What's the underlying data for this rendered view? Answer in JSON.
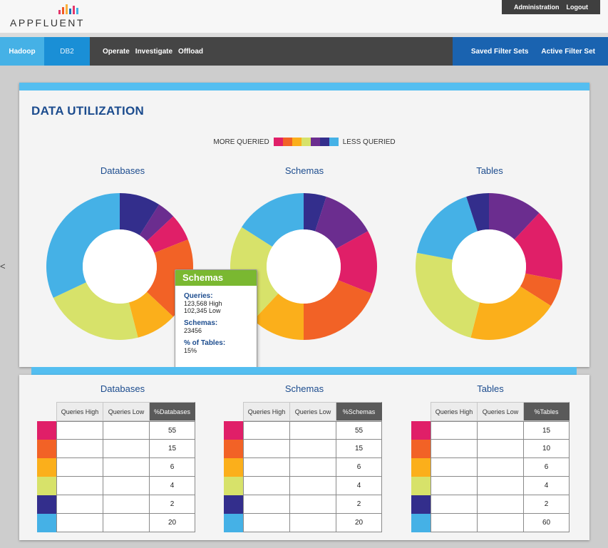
{
  "header": {
    "logo_text": "APPFLUENT",
    "logo_bar_colors": [
      "#e3366b",
      "#f15a24",
      "#fbb03b",
      "#1b75bc",
      "#e3366b",
      "#45b1e6"
    ],
    "admin_label": "Administration",
    "logout_label": "Logout"
  },
  "nav": {
    "hadoop": "Hadoop",
    "db2": "DB2",
    "operate": "Operate",
    "investigate": "Investigate",
    "offload": "Offload",
    "saved_filter_sets": "Saved Filter Sets",
    "active_filter_set": "Active Filter Set"
  },
  "side_caret": "<",
  "utilization": {
    "title": "DATA UTILIZATION",
    "legend_more": "MORE QUERIED",
    "legend_less": "LESS QUERIED",
    "legend_colors": [
      "#e01f68",
      "#f26226",
      "#fbaf1b",
      "#d7e26a",
      "#6b2d8f",
      "#332e8c",
      "#45b1e6"
    ]
  },
  "colors": {
    "magenta": "#e01f68",
    "orange": "#f26226",
    "amber": "#fbaf1b",
    "lime": "#d7e26a",
    "purple": "#6b2d8f",
    "indigo": "#332e8c",
    "sky": "#45b1e6",
    "title_blue": "#1c4c8e",
    "tooltip_green": "#7ab831"
  },
  "chart_data": [
    {
      "type": "pie",
      "title": "Databases",
      "slices": [
        {
          "color": "#332e8c",
          "value": 9
        },
        {
          "color": "#6b2d8f",
          "value": 4
        },
        {
          "color": "#e01f68",
          "value": 6
        },
        {
          "color": "#f26226",
          "value": 18
        },
        {
          "color": "#fbaf1b",
          "value": 9
        },
        {
          "color": "#d7e26a",
          "value": 22
        },
        {
          "color": "#45b1e6",
          "value": 32
        }
      ]
    },
    {
      "type": "pie",
      "title": "Schemas",
      "slices": [
        {
          "color": "#332e8c",
          "value": 5
        },
        {
          "color": "#6b2d8f",
          "value": 12
        },
        {
          "color": "#e01f68",
          "value": 14
        },
        {
          "color": "#f26226",
          "value": 19
        },
        {
          "color": "#fbaf1b",
          "value": 12
        },
        {
          "color": "#d7e26a",
          "value": 22
        },
        {
          "color": "#45b1e6",
          "value": 16
        }
      ]
    },
    {
      "type": "pie",
      "title": "Tables",
      "slices": [
        {
          "color": "#6b2d8f",
          "value": 12
        },
        {
          "color": "#e01f68",
          "value": 16
        },
        {
          "color": "#f26226",
          "value": 6
        },
        {
          "color": "#fbaf1b",
          "value": 20
        },
        {
          "color": "#d7e26a",
          "value": 24
        },
        {
          "color": "#45b1e6",
          "value": 17
        },
        {
          "color": "#332e8c",
          "value": 5
        }
      ]
    }
  ],
  "tooltip": {
    "title": "Schemas",
    "queries_label": "Queries:",
    "queries_high": "123,568 High",
    "queries_low": "102,345 Low",
    "schemas_label": "Schemas:",
    "schemas_value": "23456",
    "pct_label": "% of Tables:",
    "pct_value": "15%"
  },
  "tables": [
    {
      "title": "Databases",
      "headers": [
        "Queries High",
        "Queries Low",
        "%Databases"
      ],
      "rows": [
        {
          "color": "#e01f68",
          "high": "",
          "low": "",
          "pct": "55"
        },
        {
          "color": "#f26226",
          "high": "",
          "low": "",
          "pct": "15"
        },
        {
          "color": "#fbaf1b",
          "high": "",
          "low": "",
          "pct": "6"
        },
        {
          "color": "#d7e26a",
          "high": "",
          "low": "",
          "pct": "4"
        },
        {
          "color": "#332e8c",
          "high": "",
          "low": "",
          "pct": "2"
        },
        {
          "color": "#45b1e6",
          "high": "",
          "low": "",
          "pct": "20"
        }
      ]
    },
    {
      "title": "Schemas",
      "headers": [
        "Queries High",
        "Queries Low",
        "%Schemas"
      ],
      "rows": [
        {
          "color": "#e01f68",
          "high": "",
          "low": "",
          "pct": "55"
        },
        {
          "color": "#f26226",
          "high": "",
          "low": "",
          "pct": "15"
        },
        {
          "color": "#fbaf1b",
          "high": "",
          "low": "",
          "pct": "6"
        },
        {
          "color": "#d7e26a",
          "high": "",
          "low": "",
          "pct": "4"
        },
        {
          "color": "#332e8c",
          "high": "",
          "low": "",
          "pct": "2"
        },
        {
          "color": "#45b1e6",
          "high": "",
          "low": "",
          "pct": "20"
        }
      ]
    },
    {
      "title": "Tables",
      "headers": [
        "Queries High",
        "Queries Low",
        "%Tables"
      ],
      "rows": [
        {
          "color": "#e01f68",
          "high": "",
          "low": "",
          "pct": "15"
        },
        {
          "color": "#f26226",
          "high": "",
          "low": "",
          "pct": "10"
        },
        {
          "color": "#fbaf1b",
          "high": "",
          "low": "",
          "pct": "6"
        },
        {
          "color": "#d7e26a",
          "high": "",
          "low": "",
          "pct": "4"
        },
        {
          "color": "#332e8c",
          "high": "",
          "low": "",
          "pct": "2"
        },
        {
          "color": "#45b1e6",
          "high": "",
          "low": "",
          "pct": "60"
        }
      ]
    }
  ]
}
